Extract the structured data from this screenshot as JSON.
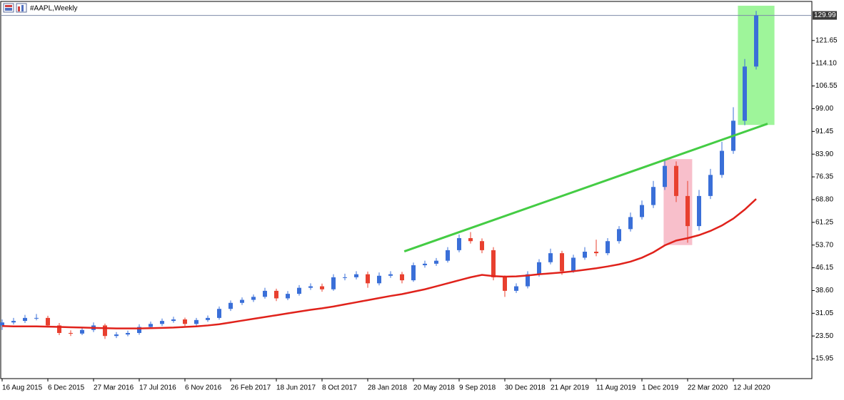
{
  "chart_data": {
    "type": "candlestick",
    "title": "#AAPL,Weekly",
    "categories": [
      "16 Aug 2015",
      null,
      null,
      null,
      "6 Dec 2015",
      null,
      null,
      null,
      "27 Mar 2016",
      null,
      null,
      null,
      "17 Jul 2016",
      null,
      null,
      null,
      "6 Nov 2016",
      null,
      null,
      null,
      "26 Feb 2017",
      null,
      null,
      null,
      "18 Jun 2017",
      null,
      null,
      null,
      "8 Oct 2017",
      null,
      null,
      null,
      "28 Jan 2018",
      null,
      null,
      null,
      "20 May 2018",
      null,
      null,
      null,
      "9 Sep 2018",
      null,
      null,
      null,
      "30 Dec 2018",
      null,
      null,
      null,
      "21 Apr 2019",
      null,
      null,
      null,
      "11 Aug 2019",
      null,
      null,
      null,
      "1 Dec 2019",
      null,
      null,
      null,
      "22 Mar 2020",
      null,
      null,
      null,
      "12 Jul 2020",
      null,
      null
    ],
    "open": [
      27,
      28,
      28.5,
      29.5,
      29.5,
      27,
      24.5,
      24.3,
      25.5,
      27,
      23.5,
      24,
      24.5,
      26.5,
      27.5,
      28.5,
      29,
      27.5,
      28.8,
      29.5,
      32.5,
      34.5,
      35.5,
      36.5,
      38.5,
      36,
      37.5,
      39.5,
      40,
      39,
      43,
      43,
      44,
      41,
      43.5,
      44,
      42,
      47,
      47.5,
      48.5,
      52,
      56,
      55,
      52,
      43,
      38.5,
      40,
      44,
      48,
      51,
      45,
      49.5,
      51.5,
      51,
      55,
      59,
      63,
      67,
      73,
      80,
      70,
      60,
      70,
      77,
      85,
      95,
      113
    ],
    "high": [
      29,
      29.5,
      30.5,
      30.8,
      30.2,
      27.8,
      25.4,
      26.3,
      28,
      27.6,
      24.8,
      25.3,
      27.4,
      28.3,
      29.3,
      29.9,
      29.6,
      29.5,
      30.3,
      33.3,
      35.3,
      36.3,
      37.3,
      39.5,
      39.2,
      38.4,
      40.4,
      41,
      40.9,
      44,
      44.2,
      45,
      44.9,
      44.6,
      45,
      44.8,
      47.9,
      48.5,
      49.4,
      53,
      57.2,
      58,
      55.9,
      53,
      43.6,
      41,
      45,
      49,
      52.5,
      51.8,
      50.5,
      53,
      55.5,
      56,
      60,
      64.5,
      68.5,
      75,
      82,
      81.5,
      75,
      72,
      79,
      88,
      99.5,
      115.5,
      131.5
    ],
    "low": [
      25.5,
      27.3,
      27.8,
      28.7,
      26.3,
      23.8,
      23.5,
      23.8,
      24.8,
      22.5,
      22.8,
      23.4,
      23.9,
      25.9,
      26.8,
      27.9,
      26.8,
      26.9,
      28.2,
      28.9,
      31.8,
      33.8,
      34.8,
      35.9,
      35.1,
      35.4,
      36.9,
      38.8,
      38.2,
      38.5,
      42,
      42.3,
      39.5,
      40.3,
      42.8,
      41,
      41.5,
      46.2,
      46.8,
      47.9,
      51.3,
      54.2,
      51,
      42,
      36.5,
      37.8,
      39.3,
      43.2,
      47.3,
      43.8,
      44.5,
      48.8,
      50,
      50.3,
      54.2,
      58.2,
      62.2,
      66,
      72,
      68,
      54.5,
      58.5,
      69,
      76,
      84,
      93.5,
      112
    ],
    "close": [
      28,
      28.5,
      29.5,
      29.5,
      27,
      24.5,
      24.3,
      25.5,
      27,
      23.5,
      24,
      24.5,
      26.5,
      27.5,
      28.5,
      29,
      27.5,
      28.8,
      29.5,
      32.5,
      34.5,
      35.5,
      36.5,
      38.5,
      36,
      37.5,
      39.5,
      40,
      39,
      43,
      43,
      44,
      41,
      43.5,
      44,
      42,
      47,
      47.5,
      48.5,
      52,
      56,
      55,
      52,
      43,
      38.5,
      40,
      44,
      48,
      51,
      45,
      49.5,
      51.5,
      51,
      55,
      59,
      63,
      67,
      73,
      80,
      70,
      60,
      70,
      77,
      85,
      95,
      113,
      129.99
    ],
    "up_color": "#3a6fd8",
    "down_color": "#e8402f",
    "moving_average": {
      "color": "#e0221b",
      "values": [
        26.8,
        26.7,
        26.7,
        26.7,
        26.6,
        26.5,
        26.4,
        26.3,
        26.2,
        26.1,
        26.0,
        26.0,
        26.0,
        26.1,
        26.2,
        26.3,
        26.5,
        26.7,
        27.0,
        27.4,
        28.0,
        28.6,
        29.2,
        29.8,
        30.4,
        31.0,
        31.6,
        32.2,
        32.7,
        33.3,
        34.0,
        34.7,
        35.4,
        36.1,
        36.8,
        37.4,
        38.2,
        39.0,
        40.0,
        41.0,
        42.0,
        43.0,
        43.8,
        43.4,
        43.2,
        43.3,
        43.6,
        44.0,
        44.3,
        44.6,
        45.0,
        45.5,
        46.0,
        46.6,
        47.3,
        48.2,
        49.5,
        51.3,
        53.6,
        55.2,
        56.0,
        57.0,
        58.4,
        60.2,
        62.5,
        65.5,
        69.0
      ]
    },
    "trendline": {
      "color": "#44cc44",
      "x": [
        35.2,
        67.0
      ],
      "y": [
        51.6,
        94.0
      ]
    },
    "zones": [
      {
        "color": "#f8bfcb",
        "x": [
          57.9,
          60.4
        ],
        "y": [
          53.7,
          82.25
        ]
      },
      {
        "color": "#9ef59a",
        "x": [
          64.4,
          67.6
        ],
        "y": [
          93.6,
          133.2
        ]
      }
    ],
    "last_price": 129.99,
    "ylim": [
      9.34,
      134.63
    ],
    "yticks": [
      15.95,
      {
        "value": 23.5,
        "label": "23.50"
      },
      31.05,
      {
        "value": 38.6,
        "label": "38.60"
      },
      46.15,
      {
        "value": 53.7,
        "label": "53.70"
      },
      61.25,
      {
        "value": 68.8,
        "label": "68.80"
      },
      76.35,
      {
        "value": 83.9,
        "label": "83.90"
      },
      91.45,
      {
        "value": 99,
        "label": "99.00"
      },
      106.55,
      {
        "value": 114.1,
        "label": "114.10"
      },
      121.65
    ]
  }
}
